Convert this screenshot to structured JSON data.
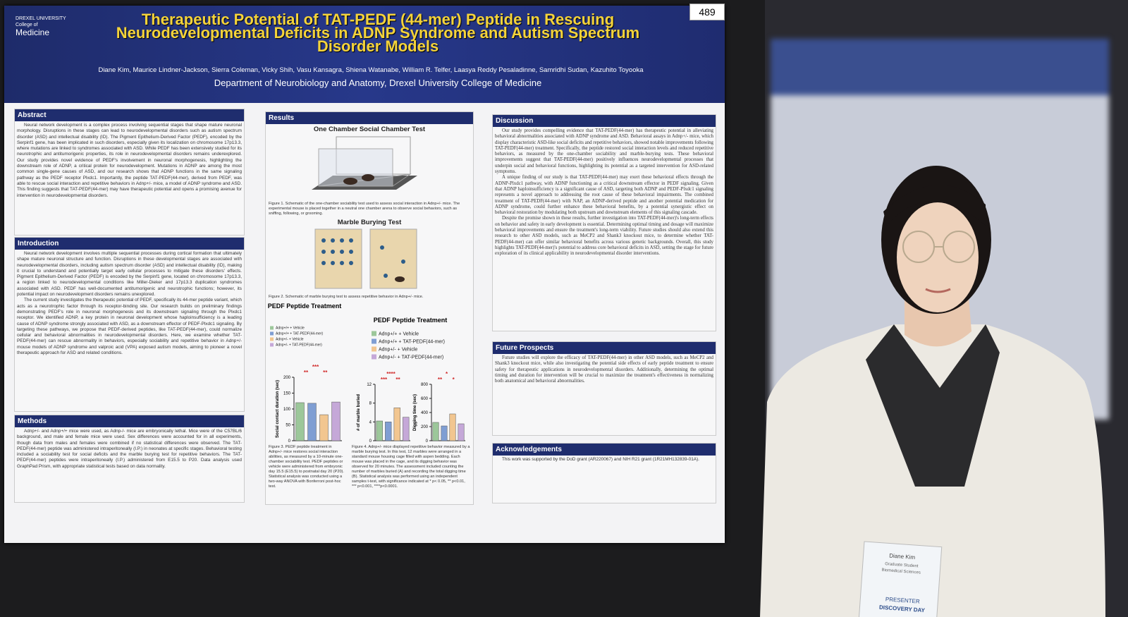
{
  "poster_number": "489",
  "header": {
    "logo": [
      "DREXEL UNIVERSITY",
      "College of",
      "Medicine"
    ],
    "title": "Therapeutic Potential of TAT-PEDF (44-mer) Peptide in Rescuing Neurodevelopmental Deficits in ADNP Syndrome and Autism Spectrum Disorder Models",
    "authors": "Diane Kim, Maurice Lindner-Jackson, Sierra Coleman, Vicky Shih, Vasu Kansagra, Shiena Watanabe, William R. Telfer, Laasya Reddy Pesaladinne, Samridhi Sudan, Kazuhito Toyooka",
    "department": "Department of Neurobiology and Anatomy, Drexel University College of Medicine"
  },
  "abstract": {
    "heading": "Abstract",
    "paragraphs": [
      "Neural network development is a complex process involving sequential stages that shape mature neuronal morphology. Disruptions in these stages can lead to neurodevelopmental disorders such as autism spectrum disorder (ASD) and intellectual disability (ID). The Pigment Epithelium-Derived Factor (PEDF), encoded by the Serpinf1 gene, has been implicated in such disorders, especially given its localization on chromosome 17p13.3, where mutations are linked to syndromes associated with ASD. While PEDF has been extensively studied for its neurotrophic and antitumorigenic properties, its role in neurodevelopmental disorders remains underexplored. Our study provides novel evidence of PEDF's involvement in neuronal morphogenesis, highlighting the downstream role of ADNP, a critical protein for neurodevelopment. Mutations in ADNP are among the most common single-gene causes of ASD, and our research shows that ADNP functions in the same signaling pathway as the PEDF receptor Plxdc1. Importantly, the peptide TAT-PEDF(44-mer), derived from PEDF, was able to rescue social interaction and repetitive behaviors in Adnp+/- mice, a model of ADNP syndrome and ASD. This finding suggests that TAT-PEDF(44-mer) may have therapeutic potential and opens a promising avenue for intervention in neurodevelopmental disorders."
    ]
  },
  "introduction": {
    "heading": "Introduction",
    "paragraphs": [
      "Neural network development involves multiple sequential processes during cortical formation that ultimately shape mature neuronal structure and function. Disruptions in these developmental stages are associated with neurodevelopmental disorders, including autism spectrum disorder (ASD) and intellectual disability (ID), making it crucial to understand and potentially target early cellular processes to mitigate these disorders' effects. Pigment Epithelium-Derived Factor (PEDF) is encoded by the Serpinf1 gene, located on chromosome 17p13.3, a region linked to neurodevelopmental conditions like Miller-Dieker and 17p13.3 duplication syndromes associated with ASD. PEDF has well-documented antitumorigenic and neurotrophic functions; however, its potential impact on neurodevelopment disorders remains unexplored.",
      "The current study investigates the therapeutic potential of PEDF, specifically its 44-mer peptide variant, which acts as a neurotrophic factor through its receptor-binding site. Our research builds on preliminary findings demonstrating PEDF's role in neuronal morphogenesis and its downstream signaling through the Plxdc1 receptor. We identified ADNP, a key protein in neuronal development whose haploinsufficiency is a leading cause of ADNP syndrome strongly associated with ASD, as a downstream effector of PEDF-Plxdc1 signaling. By targeting these pathways, we propose that PEDF-derived peptides, like TAT-PEDF(44-mer), could normalize cellular and behavioral abnormalities in neurodevelopmental disorders. Here, we examine whether TAT-PEDF(44-mer) can rescue abnormality in behaviors, especially sociability and repetitive behavior in Adnp+/- mouse models of ADNP syndrome and valproic acid (VPA) exposed autism models, aiming to pioneer a novel therapeutic approach for ASD and related conditions."
    ]
  },
  "methods": {
    "heading": "Methods",
    "paragraphs": [
      "Adnp+/- and Adnp+/+ mice were used, as Adnp-/- mice are embryonically lethal. Mice were of the C57BL/6 background, and male and female mice were used. Sex differences were accounted for in all experiments, though data from males and females were combined if no statistical differences were observed. The TAT-PEDF(44-mer) peptide was administered intraperitoneally (I.P.) in neonates at specific stages. Behavioral testing included a sociability test for social deficits and the marble burying test for repetitive behaviors. The TAT-PEDF(44-mer) peptides were intraperitoneally (I.P.) administered from E15.5 to P20. Data analysis used GraphPad Prism, with appropriate statistical tests based on data normality."
    ]
  },
  "results": {
    "heading": "Results",
    "fig1_title": "One Chamber Social Chamber Test",
    "fig1_caption": "Figure 1. Schematic of the one-chamber sociability test used to assess social interaction in Adnp+/- mice. The experimental mouse is placed together in a neutral one chamber arena to observe social behaviors, such as sniffing, following, or grooming.",
    "fig2_title": "Marble Burying Test",
    "fig2_caption": "Figure 2. Schematic of marble burying test to assess repetitive behavior in Adnp+/- mice.",
    "fig3": {
      "title": "PEDF Peptide Treatment",
      "legend": [
        {
          "name": "Adnp+/+ + Vehicle",
          "color": "#9cc79a"
        },
        {
          "name": "Adnp+/+ + TAT-PEDF(44-mer)",
          "color": "#7f9ed3"
        },
        {
          "name": "Adnp+/- + Vehicle",
          "color": "#f2c690"
        },
        {
          "name": "Adnp+/- + TAT-PEDF(44-mer)",
          "color": "#c5a8d8"
        }
      ],
      "ylabel": "Social contact duration (sec)",
      "ylim": [
        0,
        200
      ],
      "yticks": [
        0,
        50,
        100,
        150,
        200
      ],
      "values": [
        120,
        118,
        82,
        122
      ],
      "stars": [
        "**",
        "***",
        "**"
      ],
      "caption": "Figure 3. PEDF peptide treatment in Adnp+/- mice restores social interaction abilities, as measured by a 10-minute one-chamber sociability test. PEDF peptides or vehicle were administered from embryonic day 15.5 (E15.5) to postnatal day 20 (P20). Statistical analysis was conducted using a two-way ANOVA with Bonferroni post-hoc test."
    },
    "fig4": {
      "title": "PEDF Peptide Treatment",
      "legend": [
        {
          "name": "Adnp+/+ + Vehicle",
          "color": "#9cc79a"
        },
        {
          "name": "Adnp+/+ + TAT-PEDF(44-mer)",
          "color": "#7f9ed3"
        },
        {
          "name": "Adnp+/- + Vehicle",
          "color": "#f2c690"
        },
        {
          "name": "Adnp+/- + TAT-PEDF(44-mer)",
          "color": "#c5a8d8"
        }
      ],
      "panelA": {
        "ylabel": "# of marble buried",
        "ylim": [
          0,
          12
        ],
        "yticks": [
          0,
          4,
          8,
          12
        ],
        "values": [
          4.2,
          4.0,
          7.0,
          5.0
        ],
        "stars": [
          "***",
          "****",
          "**"
        ]
      },
      "panelB": {
        "ylabel": "Digging time (sec)",
        "ylim": [
          0,
          800
        ],
        "yticks": [
          0,
          200,
          400,
          600,
          800
        ],
        "values": [
          260,
          210,
          380,
          240
        ],
        "stars": [
          "**",
          "*",
          "*"
        ]
      },
      "caption": "Figure 4. Adnp+/- mice displayed repetitive behavior measured by a marble burying test. In this test, 12 marbles were arranged in a standard mouse housing cage filled with aspen bedding. Each mouse was placed in the cage, and its digging behavior was observed for 20 minutes. The assessment included counting the number of marbles buried (A) and recording the total digging time (B). Statistical analysis was performed using an independent samples t-test, with significance indicated at * p< 0.05, ** p<0.01, *** p<0.001, ****p<0.0001."
    }
  },
  "discussion": {
    "heading": "Discussion",
    "paragraphs": [
      "Our study provides compelling evidence that TAT-PEDF(44-mer) has therapeutic potential in alleviating behavioral abnormalities associated with ADNP syndrome and ASD. Behavioral assays in Adnp+/- mice, which display characteristic ASD-like social deficits and repetitive behaviors, showed notable improvements following TAT-PEDF(44-mer) treatment. Specifically, the peptide restored social interaction levels and reduced repetitive behaviors, as measured by the one-chamber sociability and marble-burying tests. These behavioral improvements suggest that TAT-PEDF(44-mer) positively influences neurodevelopmental processes that underpin social and behavioral functions, highlighting its potential as a targeted intervention for ASD-related symptoms.",
      "A unique finding of our study is that TAT-PEDF(44-mer) may exert these behavioral effects through the ADNP-Plxdc1 pathway, with ADNP functioning as a critical downstream effector in PEDF signaling. Given that ADNP haploinsufficiency is a significant cause of ASD, targeting both ADNP and PEDF-Plxdc1 signaling represents a novel approach to addressing the root cause of these behavioral impairments. The combined treatment of TAT-PEDF(44-mer) with NAP, an ADNP-derived peptide and another potential medication for ADNP syndrome, could further enhance these behavioral benefits, by a potential synergistic effect on behavioral restoration by modulating both upstream and downstream elements of this signaling cascade.",
      "Despite the promise shown in these results, further investigation into TAT-PEDF(44-mer)'s long-term effects on behavior and safety in early development is essential. Determining optimal timing and dosage will maximize behavioral improvements and ensure the treatment's long-term viability. Future studies should also extend this research to other ASD models, such as MeCP2 and Shank3 knockout mice, to determine whether TAT-PEDF(44-mer) can offer similar behavioral benefits across various genetic backgrounds. Overall, this study highlights TAT-PEDF(44-mer)'s potential to address core behavioral deficits in ASD, setting the stage for future exploration of its clinical applicability in neurodevelopmental disorder interventions."
    ]
  },
  "future": {
    "heading": "Future Prospects",
    "paragraphs": [
      "Future studies will explore the efficacy of TAT-PEDF(44-mer) in other ASD models, such as MeCP2 and Shank3 knockout mice, while also investigating the potential side effects of early peptide treatment to ensure safety for therapeutic applications in neurodevelopmental disorders. Additionally, determining the optimal timing and duration for intervention will be crucial to maximize the treatment's effectiveness in normalizing both anatomical and behavioral abnormalities."
    ]
  },
  "acknowledgements": {
    "heading": "Acknowledgements",
    "paragraphs": [
      "This work was supported by the DoD grant (AR220067) and NIH R21 grant (1R21MH132839-01A)."
    ]
  },
  "badge": {
    "name": "Diane Kim",
    "role": "Graduate Student",
    "program": "Biomedical Sciences",
    "label": "PRESENTER",
    "footer": "DISCOVERY DAY"
  }
}
